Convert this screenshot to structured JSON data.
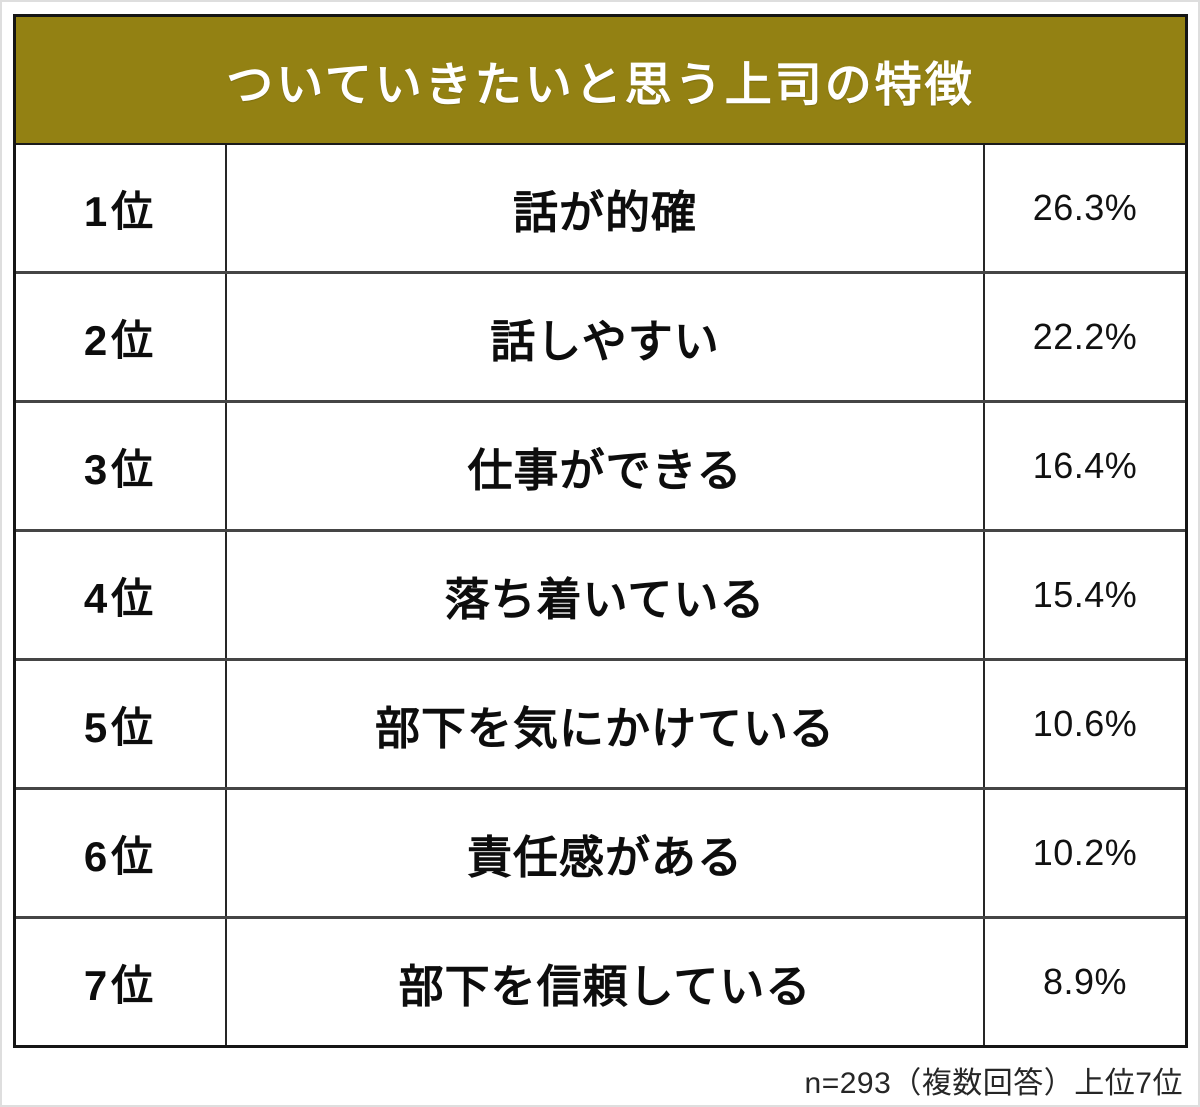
{
  "page": {
    "title": "ついていきたいと思う上司の特徴",
    "footer_note": "n=293（複数回答）上位7位"
  },
  "colors": {
    "header_bg": "#938113",
    "header_text": "#ffffff",
    "outer_border": "#151515",
    "row_divider": "#454545",
    "body_text": "#0d0d0d"
  },
  "chart_data": {
    "type": "table",
    "title": "ついていきたいと思う上司の特徴",
    "rows": [
      {
        "rank": "1位",
        "label": "話が的確",
        "value": "26.3%",
        "value_num": 26.3
      },
      {
        "rank": "2位",
        "label": "話しやすい",
        "value": "22.2%",
        "value_num": 22.2
      },
      {
        "rank": "3位",
        "label": "仕事ができる",
        "value": "16.4%",
        "value_num": 16.4
      },
      {
        "rank": "4位",
        "label": "落ち着いている",
        "value": "15.4%",
        "value_num": 15.4
      },
      {
        "rank": "5位",
        "label": "部下を気にかけている",
        "value": "10.6%",
        "value_num": 10.6
      },
      {
        "rank": "6位",
        "label": "責任感がある",
        "value": "10.2%",
        "value_num": 10.2
      },
      {
        "rank": "7位",
        "label": "部下を信頼している",
        "value": "8.9%",
        "value_num": 8.9
      }
    ],
    "note": "n=293（複数回答）上位7位"
  }
}
